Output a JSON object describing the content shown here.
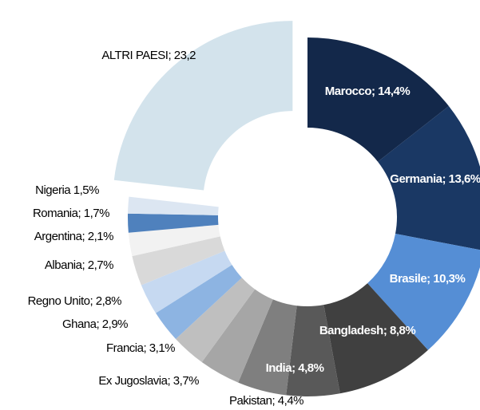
{
  "chart_data": {
    "type": "donut",
    "categories": [
      "Marocco",
      "Germania",
      "Brasile",
      "Bangladesh",
      "India",
      "Pakistan",
      "Ex Jugoslavia",
      "Francia",
      "Ghana",
      "Regno Unito",
      "Albania",
      "Argentina",
      "Romania",
      "Nigeria",
      "ALTRI PAESI"
    ],
    "values": [
      14.4,
      13.6,
      10.3,
      8.8,
      4.8,
      4.4,
      3.7,
      3.1,
      2.9,
      2.8,
      2.7,
      2.1,
      1.7,
      1.5,
      23.2
    ],
    "value_labels": [
      "Marocco; 14,4%",
      "Germania; 13,6%",
      "Brasile; 10,3%",
      "Bangladesh; 8,8%",
      "India; 4,8%",
      "Pakistan; 4,4%",
      "Ex Jugoslavia; 3,7%",
      "Francia; 3,1%",
      "Ghana; 2,9%",
      "Regno Unito; 2,8%",
      "Albania; 2,7%",
      "Argentina; 2,1%",
      "Romania; 1,7%",
      "Nigeria 1,5%",
      "ALTRI PAESI; 23,2"
    ],
    "colors": [
      "#13284a",
      "#1a3864",
      "#558ed5",
      "#404040",
      "#595959",
      "#7f7f7f",
      "#a6a6a6",
      "#bfbfbf",
      "#8db4e2",
      "#c6d9f1",
      "#d9d9d9",
      "#f2f2f2",
      "#4f81bd",
      "#dce6f2",
      "#d3e3ec"
    ]
  }
}
